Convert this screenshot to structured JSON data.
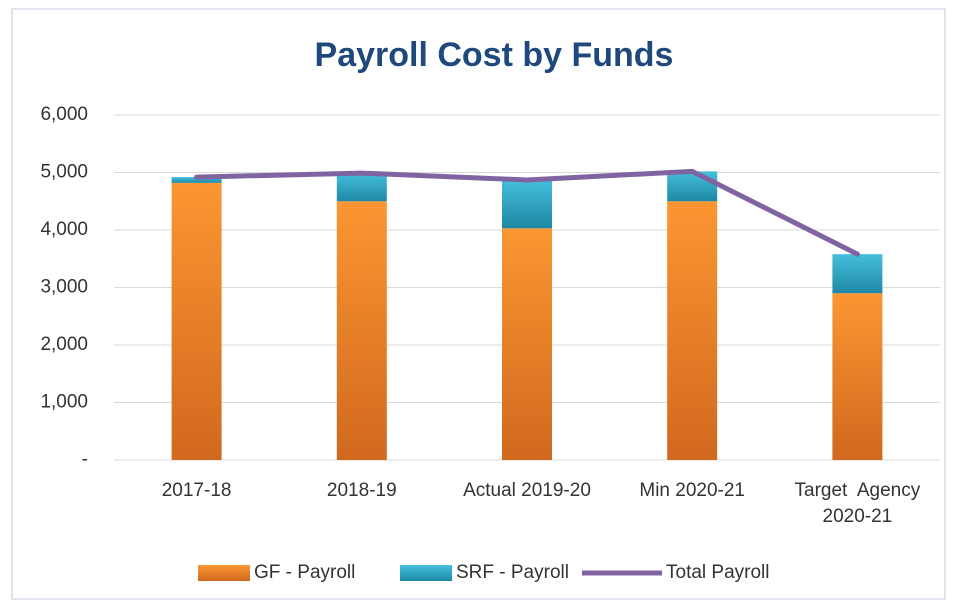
{
  "chart_data": {
    "type": "stacked-bar-line",
    "title": "Payroll Cost by Funds",
    "categories": [
      "2017-18",
      "2018-19",
      "Actual 2019-20",
      "Min 2020-21",
      "Target  Agency\n2020-21"
    ],
    "series": [
      {
        "name": "GF - Payroll",
        "kind": "bar",
        "color": "#f28a2a",
        "values": [
          4820,
          4500,
          4030,
          4500,
          2900
        ]
      },
      {
        "name": "SRF - Payroll",
        "kind": "bar",
        "color": "#2fa8c9",
        "values": [
          100,
          490,
          840,
          520,
          680
        ]
      },
      {
        "name": "Total Payroll",
        "kind": "line",
        "color": "#8064a2",
        "values": [
          4920,
          4990,
          4870,
          5020,
          3580
        ]
      }
    ],
    "ylim": [
      0,
      6000
    ],
    "yticks": [
      {
        "value": 0,
        "label": "-"
      },
      {
        "value": 1000,
        "label": "1,000"
      },
      {
        "value": 2000,
        "label": "2,000"
      },
      {
        "value": 3000,
        "label": "3,000"
      },
      {
        "value": 4000,
        "label": "4,000"
      },
      {
        "value": 5000,
        "label": "5,000"
      },
      {
        "value": 6000,
        "label": "6,000"
      }
    ],
    "grid": true,
    "legend": "bottom"
  }
}
